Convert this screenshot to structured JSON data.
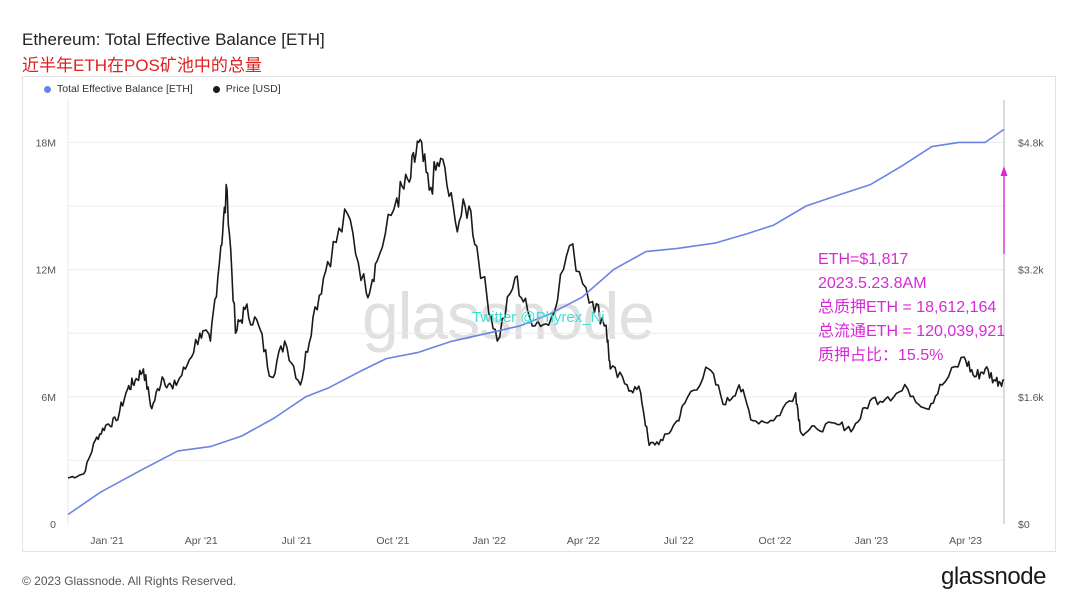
{
  "header": {
    "title": "Ethereum: Total Effective Balance [ETH]",
    "subtitle": "近半年ETH在POS矿池中的总量"
  },
  "footer": {
    "copyright": "© 2023 Glassnode. All Rights Reserved.",
    "brand": "glassnode"
  },
  "watermark": {
    "text": "glassnode",
    "twitter": "Twitter @Phyrex_Ni"
  },
  "annotation": {
    "lines": [
      "ETH=$1,817",
      "2023.5.23.8AM",
      "总质押ETH = 18,612,164",
      "总流通ETH = 120,039,921",
      "质押占比：15.5%"
    ],
    "color": "#d62ad6"
  },
  "colors": {
    "balance": "#6b84e4",
    "price": "#1a1a1a",
    "arrow": "#d62ad6"
  },
  "chart_data": {
    "type": "line",
    "legend_position": "top-left",
    "grid": true,
    "x": {
      "ticks": [
        "Jan '21",
        "Apr '21",
        "Jul '21",
        "Oct '21",
        "Jan '22",
        "Apr '22",
        "Jul '22",
        "Oct '22",
        "Jan '23",
        "Apr '23"
      ],
      "tick_dates": [
        "2021-01-01",
        "2021-04-01",
        "2021-07-01",
        "2021-10-01",
        "2022-01-01",
        "2022-04-01",
        "2022-07-01",
        "2022-10-01",
        "2023-01-01",
        "2023-04-01"
      ],
      "range": [
        "2020-12-10",
        "2023-05-23"
      ]
    },
    "y_left": {
      "ticks": [
        "0",
        "6M",
        "12M",
        "18M"
      ],
      "tick_values": [
        0,
        6000000,
        12000000,
        18000000
      ],
      "range": [
        0,
        20000000
      ]
    },
    "y_right": {
      "ticks": [
        "$0",
        "$1.6k",
        "$3.2k",
        "$4.8k"
      ],
      "tick_values": [
        0,
        1600,
        3200,
        4800
      ],
      "range": [
        0,
        5333
      ]
    },
    "series": [
      {
        "name": "Total Effective Balance [ETH]",
        "axis": "left",
        "points": [
          [
            "2020-12-10",
            450000
          ],
          [
            "2021-01-10",
            1500000
          ],
          [
            "2021-02-20",
            2600000
          ],
          [
            "2021-03-25",
            3450000
          ],
          [
            "2021-04-25",
            3650000
          ],
          [
            "2021-05-25",
            4150000
          ],
          [
            "2021-06-25",
            5000000
          ],
          [
            "2021-07-25",
            6000000
          ],
          [
            "2021-08-15",
            6400000
          ],
          [
            "2021-09-15",
            7200000
          ],
          [
            "2021-10-10",
            7800000
          ],
          [
            "2021-11-10",
            8100000
          ],
          [
            "2021-12-10",
            8600000
          ],
          [
            "2022-01-15",
            9000000
          ],
          [
            "2022-02-15",
            9350000
          ],
          [
            "2022-03-15",
            9900000
          ],
          [
            "2022-04-15",
            10700000
          ],
          [
            "2022-05-15",
            12000000
          ],
          [
            "2022-06-15",
            12850000
          ],
          [
            "2022-07-15",
            13000000
          ],
          [
            "2022-08-20",
            13250000
          ],
          [
            "2022-09-20",
            13700000
          ],
          [
            "2022-10-15",
            14100000
          ],
          [
            "2022-11-15",
            15000000
          ],
          [
            "2022-12-15",
            15500000
          ],
          [
            "2023-01-15",
            16000000
          ],
          [
            "2023-02-15",
            16900000
          ],
          [
            "2023-03-15",
            17800000
          ],
          [
            "2023-04-10",
            18000000
          ],
          [
            "2023-05-05",
            18000000
          ],
          [
            "2023-05-23",
            18612164
          ]
        ]
      },
      {
        "name": "Price [USD]",
        "axis": "right",
        "points": [
          [
            "2020-12-10",
            580
          ],
          [
            "2020-12-25",
            630
          ],
          [
            "2021-01-05",
            1050
          ],
          [
            "2021-01-15",
            1240
          ],
          [
            "2021-01-25",
            1300
          ],
          [
            "2021-02-05",
            1700
          ],
          [
            "2021-02-12",
            1800
          ],
          [
            "2021-02-20",
            1950
          ],
          [
            "2021-02-28",
            1450
          ],
          [
            "2021-03-10",
            1850
          ],
          [
            "2021-03-20",
            1700
          ],
          [
            "2021-04-01",
            1950
          ],
          [
            "2021-04-15",
            2400
          ],
          [
            "2021-04-25",
            2300
          ],
          [
            "2021-05-05",
            3500
          ],
          [
            "2021-05-11",
            4200
          ],
          [
            "2021-05-19",
            2400
          ],
          [
            "2021-05-28",
            2700
          ],
          [
            "2021-06-10",
            2500
          ],
          [
            "2021-06-22",
            1850
          ],
          [
            "2021-07-05",
            2300
          ],
          [
            "2021-07-20",
            1750
          ],
          [
            "2021-08-01",
            2600
          ],
          [
            "2021-08-15",
            3300
          ],
          [
            "2021-09-03",
            3900
          ],
          [
            "2021-09-21",
            2900
          ],
          [
            "2021-10-01",
            3300
          ],
          [
            "2021-10-20",
            4100
          ],
          [
            "2021-11-01",
            4300
          ],
          [
            "2021-11-10",
            4800
          ],
          [
            "2021-11-20",
            4200
          ],
          [
            "2021-12-01",
            4600
          ],
          [
            "2021-12-15",
            3800
          ],
          [
            "2021-12-28",
            4000
          ],
          [
            "2022-01-10",
            3100
          ],
          [
            "2022-01-24",
            2300
          ],
          [
            "2022-02-10",
            3100
          ],
          [
            "2022-02-24",
            2600
          ],
          [
            "2022-03-14",
            2500
          ],
          [
            "2022-04-03",
            3500
          ],
          [
            "2022-04-25",
            2800
          ],
          [
            "2022-05-08",
            2500
          ],
          [
            "2022-05-12",
            1950
          ],
          [
            "2022-05-28",
            1750
          ],
          [
            "2022-06-10",
            1650
          ],
          [
            "2022-06-18",
            990
          ],
          [
            "2022-07-01",
            1050
          ],
          [
            "2022-07-15",
            1300
          ],
          [
            "2022-07-25",
            1600
          ],
          [
            "2022-08-14",
            1950
          ],
          [
            "2022-08-30",
            1500
          ],
          [
            "2022-09-12",
            1750
          ],
          [
            "2022-09-25",
            1300
          ],
          [
            "2022-10-15",
            1300
          ],
          [
            "2022-11-05",
            1650
          ],
          [
            "2022-11-10",
            1150
          ],
          [
            "2022-11-25",
            1200
          ],
          [
            "2022-12-15",
            1250
          ],
          [
            "2022-12-30",
            1200
          ],
          [
            "2023-01-15",
            1550
          ],
          [
            "2023-02-01",
            1600
          ],
          [
            "2023-02-20",
            1700
          ],
          [
            "2023-03-10",
            1450
          ],
          [
            "2023-03-25",
            1750
          ],
          [
            "2023-04-15",
            2100
          ],
          [
            "2023-04-25",
            1850
          ],
          [
            "2023-05-05",
            1950
          ],
          [
            "2023-05-15",
            1800
          ],
          [
            "2023-05-23",
            1817
          ]
        ]
      }
    ]
  }
}
